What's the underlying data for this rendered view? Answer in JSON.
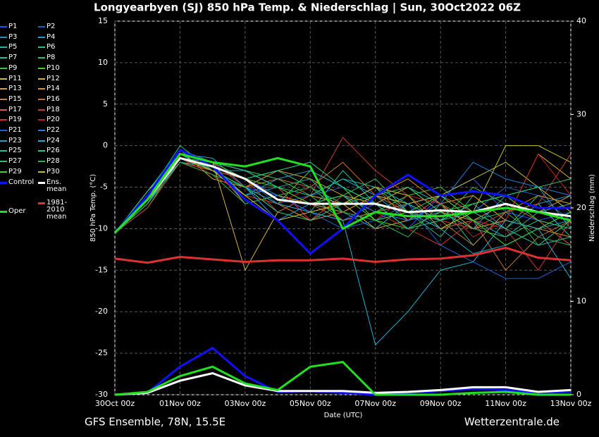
{
  "chart_data": {
    "type": "line",
    "title": "Longyearbyen  (SJ)  850 hPa Temp. & Niederschlag | Sun, 30Oct2022 06Z",
    "y_label": "850 hPa Temp. (°C)",
    "y2_label": "Niederschlag (mm)",
    "x_label": "Date (UTC)",
    "footer_left": "GFS Ensemble, 78N, 15.5E",
    "footer_right": "Wetterzentrale.de",
    "x": [
      0,
      1,
      2,
      3,
      4,
      5,
      6,
      7,
      8,
      9,
      10,
      11,
      12,
      13,
      14
    ],
    "xlim": [
      0,
      14
    ],
    "xticks": [
      {
        "value": 0,
        "label": "30Oct 00z"
      },
      {
        "value": 2,
        "label": "01Nov 00z"
      },
      {
        "value": 4,
        "label": "03Nov 00z"
      },
      {
        "value": 6,
        "label": "05Nov 00z"
      },
      {
        "value": 8,
        "label": "07Nov 00z"
      },
      {
        "value": 10,
        "label": "09Nov 00z"
      },
      {
        "value": 12,
        "label": "11Nov 00z"
      },
      {
        "value": 14,
        "label": "13Nov 00z"
      }
    ],
    "ylim": [
      -30,
      15
    ],
    "yticks": [
      -30,
      -25,
      -20,
      -15,
      -10,
      -5,
      0,
      5,
      10,
      15
    ],
    "y2lim": [
      0,
      40
    ],
    "y2ticks": [
      0,
      10,
      20,
      30,
      40
    ],
    "grid": true,
    "series": [
      {
        "name": "P1",
        "color": "#2050ff",
        "values": [
          -10.5,
          -6,
          -1,
          -3,
          -5,
          -6,
          -8,
          -9,
          -7,
          -10,
          -6,
          -4,
          -8,
          -9,
          -8
        ]
      },
      {
        "name": "P2",
        "color": "#1f5fc0",
        "values": [
          -10.5,
          -7,
          -0.5,
          -2,
          -4,
          -7,
          -6,
          -5,
          -9,
          -7,
          -10,
          -8,
          -5,
          -6,
          -9
        ]
      },
      {
        "name": "P3",
        "color": "#2090c0",
        "values": [
          -10.5,
          -6.5,
          -2,
          -3,
          -3,
          -5,
          -9,
          -6,
          -8,
          -6,
          -9,
          -7,
          -10,
          -7,
          -6
        ]
      },
      {
        "name": "P4",
        "color": "#20a0d0",
        "values": [
          -10.5,
          -5.5,
          -1,
          -1.5,
          -5,
          -8,
          -6,
          -4,
          -6,
          -9,
          -8,
          -10,
          -6,
          -5,
          -10
        ]
      },
      {
        "name": "P5",
        "color": "#20b0b0",
        "values": [
          -10.5,
          -7,
          -1.5,
          -2.5,
          -6,
          -5,
          -4,
          -8,
          -10,
          -7,
          -6,
          -9,
          -11,
          -8,
          -7
        ]
      },
      {
        "name": "P6",
        "color": "#20c080",
        "values": [
          -10.5,
          -6,
          0,
          -3,
          -4,
          -3,
          -5,
          -7,
          -5,
          -8,
          -11,
          -6,
          -9,
          -10,
          -8
        ]
      },
      {
        "name": "P7",
        "color": "#20c0a0",
        "values": [
          -10.5,
          -6.5,
          -1,
          -2,
          -7,
          -6,
          -8,
          -3,
          -7,
          -5,
          -7,
          -12,
          -8,
          -7,
          -11
        ]
      },
      {
        "name": "P8",
        "color": "#30c060",
        "values": [
          -10.5,
          -7.5,
          -1.5,
          -3.5,
          -5,
          -9,
          -7,
          -6,
          -4,
          -8,
          -9,
          -5,
          -7,
          -12,
          -9
        ]
      },
      {
        "name": "P9",
        "color": "#40c040",
        "values": [
          -10.5,
          -6,
          -0.5,
          -2,
          -3,
          -4,
          -6,
          -9,
          -8,
          -6,
          -5,
          -8,
          -10,
          -6,
          -7
        ]
      },
      {
        "name": "P10",
        "color": "#40d020",
        "values": [
          -10.5,
          -7,
          -2,
          -2.5,
          -6,
          -7,
          -3,
          -5,
          -9,
          -10,
          -8,
          -7,
          -6,
          -9,
          -10
        ]
      },
      {
        "name": "P11",
        "color": "#c0c040",
        "values": [
          -10.5,
          -6.5,
          -1,
          -3,
          -4,
          -6,
          -7,
          -8,
          -6,
          -7,
          -6,
          -4,
          -2,
          -5,
          -8
        ]
      },
      {
        "name": "P12",
        "color": "#d0b040",
        "values": [
          -10.5,
          -5.5,
          -1.5,
          -2,
          -15,
          -8,
          -6,
          -7,
          -10,
          -9,
          -7,
          -10,
          -9,
          -1,
          -4
        ]
      },
      {
        "name": "P13",
        "color": "#d0a030",
        "values": [
          -10.5,
          -7,
          -0.5,
          -4,
          -5,
          -3,
          -4,
          -6,
          -7,
          -5,
          -8,
          -9,
          -7,
          -8,
          -6
        ]
      },
      {
        "name": "P14",
        "color": "#e09020",
        "values": [
          -10.5,
          -6,
          -2,
          -3,
          -6,
          -7,
          -9,
          -8,
          -6,
          -4,
          -7,
          -6,
          -9,
          -10,
          -11
        ]
      },
      {
        "name": "P15",
        "color": "#c08040",
        "values": [
          -10.5,
          -6.5,
          -1,
          -2,
          -3,
          -5,
          -7,
          -9,
          -8,
          -7,
          -9,
          -12,
          -8,
          -6,
          -7
        ]
      },
      {
        "name": "P16",
        "color": "#c07030",
        "values": [
          -10.5,
          -7,
          -1.5,
          -3,
          -5,
          -4,
          -5,
          -2,
          -6,
          -8,
          -10,
          -9,
          -15,
          -11,
          -9
        ]
      },
      {
        "name": "P17",
        "color": "#d06040",
        "values": [
          -10.5,
          -6,
          -0.5,
          -2.5,
          -7,
          -6,
          -8,
          -7,
          -5,
          -9,
          -6,
          -8,
          -7,
          -9,
          -12
        ]
      },
      {
        "name": "P18",
        "color": "#c04030",
        "values": [
          -10.5,
          -7.5,
          -2,
          -3,
          -4,
          -8,
          -6,
          1,
          -3,
          -6,
          -9,
          -10,
          -8,
          -7,
          -1
        ]
      },
      {
        "name": "P19",
        "color": "#d03030",
        "values": [
          -10.5,
          -6,
          -1,
          -2,
          -5,
          -5,
          -9,
          -6,
          -8,
          -10,
          -12,
          -9,
          -10,
          -15,
          -9
        ]
      },
      {
        "name": "P20",
        "color": "#c02020",
        "values": [
          -10.5,
          -6.5,
          -1.5,
          -3.5,
          -6,
          -7,
          -5,
          -8,
          -9,
          -6,
          -7,
          -11,
          -9,
          -1,
          -6
        ]
      },
      {
        "name": "P21",
        "color": "#2060d0",
        "values": [
          -10.5,
          -7,
          -0.5,
          -2,
          -4,
          -6,
          -8,
          -10,
          -9,
          -7,
          -12,
          -14,
          -16,
          -16,
          -14
        ]
      },
      {
        "name": "P22",
        "color": "#2080e0",
        "values": [
          -10.5,
          -6,
          -1,
          -3,
          -5,
          -9,
          -7,
          -6,
          -8,
          -9,
          -7,
          -2,
          -4,
          -5,
          -6
        ]
      },
      {
        "name": "P23",
        "color": "#20a0c0",
        "values": [
          -10.5,
          -6.5,
          -2,
          -2.5,
          -6,
          -4,
          -3,
          -5,
          -7,
          -8,
          -10,
          -13,
          -12,
          -10,
          -9
        ]
      },
      {
        "name": "P24",
        "color": "#20b0d0",
        "values": [
          -10.5,
          -7,
          -1,
          -3,
          -5,
          -7,
          -8,
          -9,
          -24,
          -20,
          -15,
          -14,
          -9,
          -10,
          -16
        ]
      },
      {
        "name": "P25",
        "color": "#20c0a0",
        "values": [
          -10.5,
          -6,
          -1.5,
          -2,
          -3,
          -5,
          -6,
          -4,
          -5,
          -7,
          -9,
          -8,
          -10,
          -12,
          -11
        ]
      },
      {
        "name": "P26",
        "color": "#20d080",
        "values": [
          -10.5,
          -5.5,
          -0.5,
          -2.5,
          -4,
          -3,
          -2,
          -5,
          -7,
          -10,
          -9,
          -7,
          -6,
          -5,
          -4
        ]
      },
      {
        "name": "P27",
        "color": "#30c070",
        "values": [
          -10.5,
          -6.5,
          -1,
          -3,
          -5,
          -8,
          -9,
          -7,
          -6,
          -5,
          -8,
          -10,
          -11,
          -9,
          -10
        ]
      },
      {
        "name": "P28",
        "color": "#30b050",
        "values": [
          -10.5,
          -7,
          -2,
          -3.5,
          -7,
          -6,
          -5,
          -8,
          -9,
          -11,
          -7,
          -9,
          -8,
          -11,
          -12
        ]
      },
      {
        "name": "P29",
        "color": "#40d030",
        "values": [
          -10.5,
          -6,
          -1,
          -2,
          -4,
          -5,
          -7,
          -6,
          -9,
          -8,
          -6,
          -9,
          -12,
          -10,
          -8
        ]
      },
      {
        "name": "P30",
        "color": "#c0c020",
        "values": [
          -10.5,
          -6.5,
          -1.5,
          -3,
          -6,
          -9,
          -8,
          -7,
          -5,
          -6,
          -10,
          -8,
          0,
          0,
          -2
        ]
      },
      {
        "name": "Control",
        "color": "#1010ff",
        "values": [
          -10.5,
          -6,
          -0.5,
          -2.5,
          -6.5,
          -9,
          -13,
          -10,
          -6,
          -3.5,
          -6,
          -5.5,
          -6,
          -7.5,
          -7.5
        ],
        "precip": [
          0,
          0.2,
          3,
          5,
          2,
          0.3,
          0.4,
          0.2,
          0,
          0.2,
          0.4,
          0.6,
          0.5,
          0.2,
          0.3
        ]
      },
      {
        "name": "Ens. mean",
        "color": "#ffffff",
        "values": [
          -10.5,
          -6.5,
          -1.5,
          -2.5,
          -4,
          -6.5,
          -7,
          -7,
          -7,
          -8,
          -7.8,
          -8,
          -7,
          -8,
          -8.5
        ],
        "precip": [
          0,
          0.2,
          1.5,
          2.3,
          1,
          0.4,
          0.4,
          0.4,
          0.2,
          0.3,
          0.5,
          0.8,
          0.8,
          0.3,
          0.5
        ]
      },
      {
        "name": "Oper",
        "color": "#20e020",
        "values": [
          -10.5,
          -6.5,
          -1,
          -2,
          -2.5,
          -1.5,
          -2.5,
          -10,
          -8,
          -8.5,
          -8.5,
          -8,
          -7.5,
          -8,
          -9
        ],
        "precip": [
          0,
          0.3,
          2,
          3,
          1.2,
          0.5,
          3,
          3.5,
          0,
          0,
          0,
          0.2,
          0.3,
          0,
          0
        ]
      },
      {
        "name": "1981-2010 mean",
        "color": "#e03030",
        "values": [
          -13.6,
          -14.1,
          -13.4,
          -13.7,
          -14,
          -13.8,
          -13.8,
          -13.6,
          -14,
          -13.7,
          -13.6,
          -13.2,
          -12.3,
          -13.5,
          -13.8
        ]
      }
    ]
  }
}
